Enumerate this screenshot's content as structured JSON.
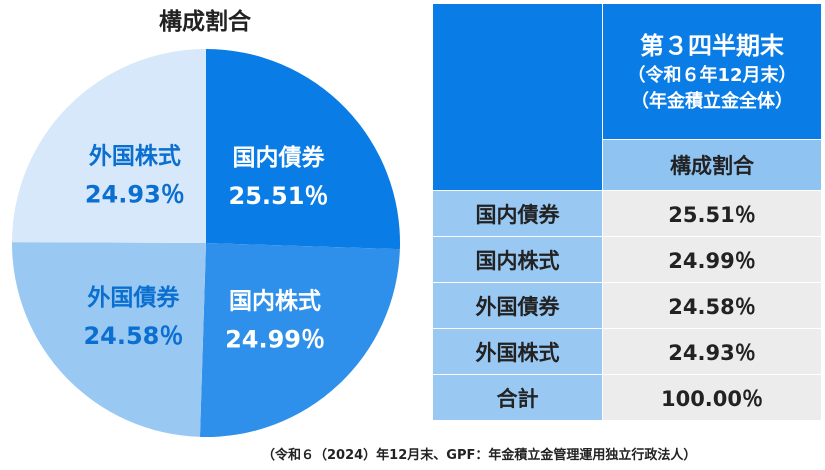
{
  "chart_data": [
    {
      "type": "pie",
      "title": "構成割合",
      "slices": [
        {
          "name": "国内債券",
          "value": 25.51,
          "label": "25.51％",
          "color": "#0a7ce6",
          "text_color": "#ffffff"
        },
        {
          "name": "国内株式",
          "value": 24.99,
          "label": "24.99％",
          "color": "#2e90ea",
          "text_color": "#ffffff"
        },
        {
          "name": "外国債券",
          "value": 24.58,
          "label": "24.58％",
          "color": "#99c9f3",
          "text_color": "#0a6fd0"
        },
        {
          "name": "外国株式",
          "value": 24.93,
          "label": "24.93％",
          "color": "#d6e8f9",
          "text_color": "#0a6fd0"
        }
      ]
    },
    {
      "type": "table",
      "header": {
        "line1": "第３四半期末",
        "line2": "（令和６年12月末）",
        "line3": "（年金積立金全体）",
        "subheader": "構成割合"
      },
      "rows": [
        {
          "label": "国内債券",
          "value": "25.51％"
        },
        {
          "label": "国内株式",
          "value": "24.99％"
        },
        {
          "label": "外国債券",
          "value": "24.58％"
        },
        {
          "label": "外国株式",
          "value": "24.93％"
        },
        {
          "label": "合計",
          "value": "100.00％"
        }
      ]
    }
  ],
  "footnote": "（令和６（2024）年12月末、GPF：年金積立金管理運用独立行政法人）"
}
